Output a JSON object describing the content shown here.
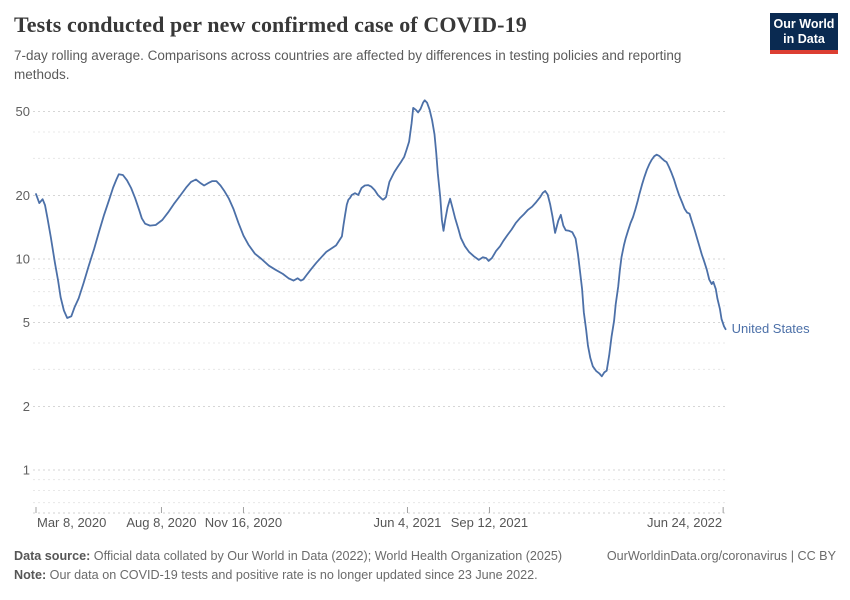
{
  "header": {
    "title": "Tests conducted per new confirmed case of COVID-19",
    "subtitle": "7-day rolling average. Comparisons across countries are affected by differences in testing policies and reporting methods.",
    "logo": {
      "line1": "Our World",
      "line2": "in Data"
    }
  },
  "footer": {
    "data_source_label": "Data source:",
    "data_source_text": " Official data collated by Our World in Data (2022); World Health Organization (2025)",
    "link_text": "OurWorldinData.org/coronavirus | CC BY",
    "note_label": "Note:",
    "note_text": " Our data on COVID-19 tests and positive rate is no longer updated since 23 June 2022."
  },
  "colors": {
    "line": "#4c70a8",
    "series_label": "#4c70a8",
    "grid_major": "#d6d6d6",
    "grid_minor": "#e8e8e8",
    "axis_line": "#d0d0d0",
    "tick_mark": "#a0a0a0",
    "logo_bg": "#0a2a51",
    "logo_red": "#dc3e32"
  },
  "chart_data": {
    "type": "line",
    "title": "Tests conducted per new confirmed case of COVID-19",
    "subtitle": "7-day rolling average. Comparisons across countries are affected by differences in testing policies and reporting methods.",
    "xlabel": "",
    "ylabel": "",
    "yscale": "log",
    "grid": true,
    "legend_position": "end-of-line-label",
    "x_epoch": "2020-03-08",
    "x_range": [
      "2020-03-08",
      "2022-06-28"
    ],
    "ylim_log_top": 60,
    "y_ticks": [
      1,
      2,
      5,
      10,
      20,
      50
    ],
    "y_minor_ticks": [
      0.7,
      0.8,
      0.9,
      3,
      4,
      6,
      7,
      8,
      9,
      30,
      40
    ],
    "x_ticks": [
      {
        "date": "2020-03-08",
        "label": "Mar 8, 2020",
        "align": "start"
      },
      {
        "date": "2020-08-08",
        "label": "Aug 8, 2020",
        "align": "middle"
      },
      {
        "date": "2020-11-16",
        "label": "Nov 16, 2020",
        "align": "middle"
      },
      {
        "date": "2021-06-04",
        "label": "Jun 4, 2021",
        "align": "middle"
      },
      {
        "date": "2021-09-12",
        "label": "Sep 12, 2021",
        "align": "middle"
      },
      {
        "date": "2022-06-24",
        "label": "Jun 24, 2022",
        "align": "end"
      }
    ],
    "series": [
      {
        "name": "United States",
        "points": [
          [
            "2020-03-08",
            20.3
          ],
          [
            "2020-03-12",
            18.4
          ],
          [
            "2020-03-16",
            19.2
          ],
          [
            "2020-03-19",
            18.0
          ],
          [
            "2020-03-22",
            15.6
          ],
          [
            "2020-03-26",
            12.7
          ],
          [
            "2020-03-31",
            9.6
          ],
          [
            "2020-04-04",
            7.9
          ],
          [
            "2020-04-07",
            6.6
          ],
          [
            "2020-04-11",
            5.7
          ],
          [
            "2020-04-15",
            5.25
          ],
          [
            "2020-04-20",
            5.35
          ],
          [
            "2020-04-24",
            5.9
          ],
          [
            "2020-04-29",
            6.5
          ],
          [
            "2020-05-05",
            7.7
          ],
          [
            "2020-05-11",
            9.2
          ],
          [
            "2020-05-18",
            11.2
          ],
          [
            "2020-05-24",
            13.5
          ],
          [
            "2020-05-30",
            16.2
          ],
          [
            "2020-06-05",
            19.0
          ],
          [
            "2020-06-10",
            21.8
          ],
          [
            "2020-06-14",
            23.8
          ],
          [
            "2020-06-17",
            25.2
          ],
          [
            "2020-06-22",
            25.0
          ],
          [
            "2020-06-27",
            23.6
          ],
          [
            "2020-07-02",
            21.7
          ],
          [
            "2020-07-07",
            19.4
          ],
          [
            "2020-07-12",
            17.0
          ],
          [
            "2020-07-15",
            15.6
          ],
          [
            "2020-07-19",
            14.7
          ],
          [
            "2020-07-25",
            14.4
          ],
          [
            "2020-08-01",
            14.5
          ],
          [
            "2020-08-09",
            15.3
          ],
          [
            "2020-08-16",
            16.6
          ],
          [
            "2020-08-23",
            18.2
          ],
          [
            "2020-08-31",
            20.0
          ],
          [
            "2020-09-07",
            21.8
          ],
          [
            "2020-09-13",
            23.2
          ],
          [
            "2020-09-19",
            23.8
          ],
          [
            "2020-09-24",
            23.0
          ],
          [
            "2020-09-29",
            22.3
          ],
          [
            "2020-10-04",
            22.9
          ],
          [
            "2020-10-09",
            23.4
          ],
          [
            "2020-10-14",
            23.4
          ],
          [
            "2020-10-19",
            22.3
          ],
          [
            "2020-10-24",
            20.9
          ],
          [
            "2020-10-29",
            19.4
          ],
          [
            "2020-11-04",
            17.2
          ],
          [
            "2020-11-10",
            14.8
          ],
          [
            "2020-11-16",
            12.9
          ],
          [
            "2020-11-22",
            11.7
          ],
          [
            "2020-11-30",
            10.6
          ],
          [
            "2020-12-08",
            10.0
          ],
          [
            "2020-12-17",
            9.3
          ],
          [
            "2020-12-25",
            8.9
          ],
          [
            "2021-01-03",
            8.5
          ],
          [
            "2021-01-10",
            8.1
          ],
          [
            "2021-01-16",
            7.9
          ],
          [
            "2021-01-21",
            8.1
          ],
          [
            "2021-01-25",
            7.9
          ],
          [
            "2021-01-28",
            8.0
          ],
          [
            "2021-02-01",
            8.4
          ],
          [
            "2021-02-07",
            9.0
          ],
          [
            "2021-02-13",
            9.6
          ],
          [
            "2021-02-19",
            10.2
          ],
          [
            "2021-02-25",
            10.8
          ],
          [
            "2021-03-03",
            11.2
          ],
          [
            "2021-03-09",
            11.6
          ],
          [
            "2021-03-16",
            12.8
          ],
          [
            "2021-03-18",
            14.5
          ],
          [
            "2021-03-20",
            16.2
          ],
          [
            "2021-03-22",
            18.1
          ],
          [
            "2021-03-24",
            19.1
          ],
          [
            "2021-03-26",
            19.5
          ],
          [
            "2021-03-28",
            20.1
          ],
          [
            "2021-04-01",
            20.5
          ],
          [
            "2021-04-05",
            20.1
          ],
          [
            "2021-04-09",
            21.7
          ],
          [
            "2021-04-13",
            22.3
          ],
          [
            "2021-04-17",
            22.4
          ],
          [
            "2021-04-21",
            22.0
          ],
          [
            "2021-04-25",
            21.2
          ],
          [
            "2021-04-29",
            20.1
          ],
          [
            "2021-05-03",
            19.4
          ],
          [
            "2021-05-05",
            19.1
          ],
          [
            "2021-05-07",
            19.3
          ],
          [
            "2021-05-09",
            19.7
          ],
          [
            "2021-05-11",
            21.5
          ],
          [
            "2021-05-13",
            23.2
          ],
          [
            "2021-05-16",
            24.5
          ],
          [
            "2021-05-19",
            25.8
          ],
          [
            "2021-05-23",
            27.3
          ],
          [
            "2021-05-27",
            28.8
          ],
          [
            "2021-05-31",
            30.5
          ],
          [
            "2021-06-03",
            33.0
          ],
          [
            "2021-06-06",
            36.0
          ],
          [
            "2021-06-09",
            44.0
          ],
          [
            "2021-06-11",
            52.0
          ],
          [
            "2021-06-14",
            51.0
          ],
          [
            "2021-06-17",
            49.5
          ],
          [
            "2021-06-20",
            51.5
          ],
          [
            "2021-06-23",
            55.0
          ],
          [
            "2021-06-25",
            56.5
          ],
          [
            "2021-06-28",
            55.0
          ],
          [
            "2021-07-01",
            51.0
          ],
          [
            "2021-07-04",
            45.5
          ],
          [
            "2021-07-07",
            39.0
          ],
          [
            "2021-07-09",
            32.0
          ],
          [
            "2021-07-11",
            25.5
          ],
          [
            "2021-07-14",
            19.5
          ],
          [
            "2021-07-16",
            15.3
          ],
          [
            "2021-07-18",
            13.6
          ],
          [
            "2021-07-20",
            15.3
          ],
          [
            "2021-07-23",
            17.6
          ],
          [
            "2021-07-26",
            19.3
          ],
          [
            "2021-07-29",
            17.4
          ],
          [
            "2021-08-01",
            15.7
          ],
          [
            "2021-08-05",
            13.9
          ],
          [
            "2021-08-08",
            12.6
          ],
          [
            "2021-08-13",
            11.5
          ],
          [
            "2021-08-18",
            10.8
          ],
          [
            "2021-08-24",
            10.3
          ],
          [
            "2021-08-30",
            9.9
          ],
          [
            "2021-09-04",
            10.2
          ],
          [
            "2021-09-08",
            10.1
          ],
          [
            "2021-09-11",
            9.8
          ],
          [
            "2021-09-15",
            10.1
          ],
          [
            "2021-09-20",
            10.9
          ],
          [
            "2021-09-25",
            11.5
          ],
          [
            "2021-09-29",
            12.2
          ],
          [
            "2021-10-04",
            13.0
          ],
          [
            "2021-10-09",
            13.8
          ],
          [
            "2021-10-14",
            14.8
          ],
          [
            "2021-10-19",
            15.6
          ],
          [
            "2021-10-24",
            16.3
          ],
          [
            "2021-10-29",
            17.1
          ],
          [
            "2021-11-03",
            17.7
          ],
          [
            "2021-11-08",
            18.6
          ],
          [
            "2021-11-13",
            19.7
          ],
          [
            "2021-11-16",
            20.6
          ],
          [
            "2021-11-19",
            21.0
          ],
          [
            "2021-11-22",
            20.2
          ],
          [
            "2021-11-25",
            18.2
          ],
          [
            "2021-11-28",
            15.8
          ],
          [
            "2021-12-01",
            13.3
          ],
          [
            "2021-12-05",
            15.2
          ],
          [
            "2021-12-08",
            16.2
          ],
          [
            "2021-12-11",
            14.4
          ],
          [
            "2021-12-14",
            13.7
          ],
          [
            "2021-12-18",
            13.6
          ],
          [
            "2021-12-22",
            13.4
          ],
          [
            "2021-12-26",
            12.5
          ],
          [
            "2021-12-29",
            10.5
          ],
          [
            "2021-12-31",
            9.0
          ],
          [
            "2022-01-03",
            7.2
          ],
          [
            "2022-01-05",
            5.6
          ],
          [
            "2022-01-08",
            4.6
          ],
          [
            "2022-01-10",
            3.9
          ],
          [
            "2022-01-13",
            3.4
          ],
          [
            "2022-01-16",
            3.1
          ],
          [
            "2022-01-20",
            2.95
          ],
          [
            "2022-01-24",
            2.87
          ],
          [
            "2022-01-27",
            2.78
          ],
          [
            "2022-01-30",
            2.9
          ],
          [
            "2022-02-02",
            2.96
          ],
          [
            "2022-02-05",
            3.5
          ],
          [
            "2022-02-08",
            4.3
          ],
          [
            "2022-02-11",
            5.1
          ],
          [
            "2022-02-13",
            6.1
          ],
          [
            "2022-02-16",
            7.4
          ],
          [
            "2022-02-18",
            8.8
          ],
          [
            "2022-02-20",
            10.2
          ],
          [
            "2022-02-23",
            11.6
          ],
          [
            "2022-02-25",
            12.5
          ],
          [
            "2022-02-28",
            13.6
          ],
          [
            "2022-03-03",
            14.8
          ],
          [
            "2022-03-06",
            15.8
          ],
          [
            "2022-03-09",
            17.2
          ],
          [
            "2022-03-12",
            19.0
          ],
          [
            "2022-03-14",
            20.4
          ],
          [
            "2022-03-17",
            22.5
          ],
          [
            "2022-03-20",
            24.5
          ],
          [
            "2022-03-23",
            26.5
          ],
          [
            "2022-03-26",
            28.2
          ],
          [
            "2022-03-29",
            29.6
          ],
          [
            "2022-04-01",
            30.7
          ],
          [
            "2022-04-04",
            31.2
          ],
          [
            "2022-04-07",
            30.8
          ],
          [
            "2022-04-10",
            30.0
          ],
          [
            "2022-04-13",
            29.3
          ],
          [
            "2022-04-16",
            28.8
          ],
          [
            "2022-04-19",
            27.3
          ],
          [
            "2022-04-22",
            25.6
          ],
          [
            "2022-04-25",
            23.8
          ],
          [
            "2022-04-28",
            21.9
          ],
          [
            "2022-05-01",
            20.2
          ],
          [
            "2022-05-05",
            18.5
          ],
          [
            "2022-05-08",
            17.3
          ],
          [
            "2022-05-11",
            16.6
          ],
          [
            "2022-05-14",
            16.4
          ],
          [
            "2022-05-17",
            15.0
          ],
          [
            "2022-05-20",
            13.8
          ],
          [
            "2022-05-23",
            12.6
          ],
          [
            "2022-05-26",
            11.5
          ],
          [
            "2022-05-29",
            10.5
          ],
          [
            "2022-06-01",
            9.7
          ],
          [
            "2022-06-04",
            8.9
          ],
          [
            "2022-06-07",
            8.0
          ],
          [
            "2022-06-10",
            7.6
          ],
          [
            "2022-06-12",
            7.8
          ],
          [
            "2022-06-15",
            7.2
          ],
          [
            "2022-06-17",
            6.5
          ],
          [
            "2022-06-20",
            5.8
          ],
          [
            "2022-06-22",
            5.2
          ],
          [
            "2022-06-25",
            4.8
          ],
          [
            "2022-06-27",
            4.65
          ]
        ]
      }
    ]
  }
}
